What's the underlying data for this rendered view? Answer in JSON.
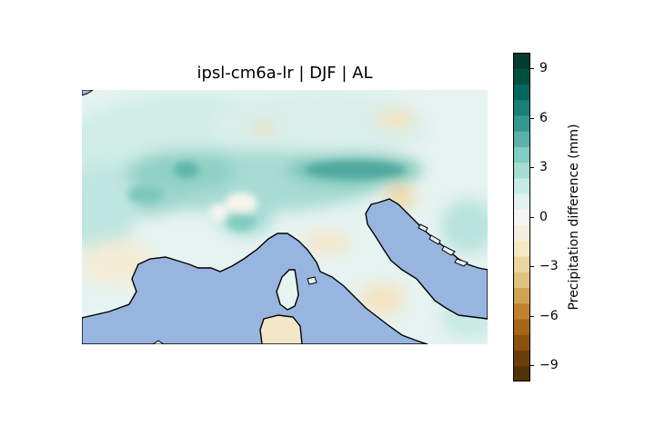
{
  "map": {
    "title": "ipsl-cm6a-lr | DJF | AL",
    "sea_color": "#98b5e0",
    "coast_color": "#000000"
  },
  "colorbar": {
    "label": "Precipitation difference (mm)",
    "ticks": [
      "9",
      "6",
      "3",
      "0",
      "−3",
      "−6",
      "−9"
    ],
    "tick_values": [
      9,
      6,
      3,
      0,
      -3,
      -6,
      -9
    ],
    "range": [
      -10,
      10
    ],
    "colors": [
      "#543005",
      "#6b3d09",
      "#8c510a",
      "#a5661b",
      "#bf812d",
      "#d0a256",
      "#dfc27d",
      "#ebd49f",
      "#f6e8c3",
      "#f5eedf",
      "#f5f5f5",
      "#e2f2f0",
      "#c7eae5",
      "#a6dcd4",
      "#80cdc1",
      "#5bb2a8",
      "#35978f",
      "#1a7f77",
      "#01665e",
      "#00503f",
      "#003c30"
    ]
  }
}
